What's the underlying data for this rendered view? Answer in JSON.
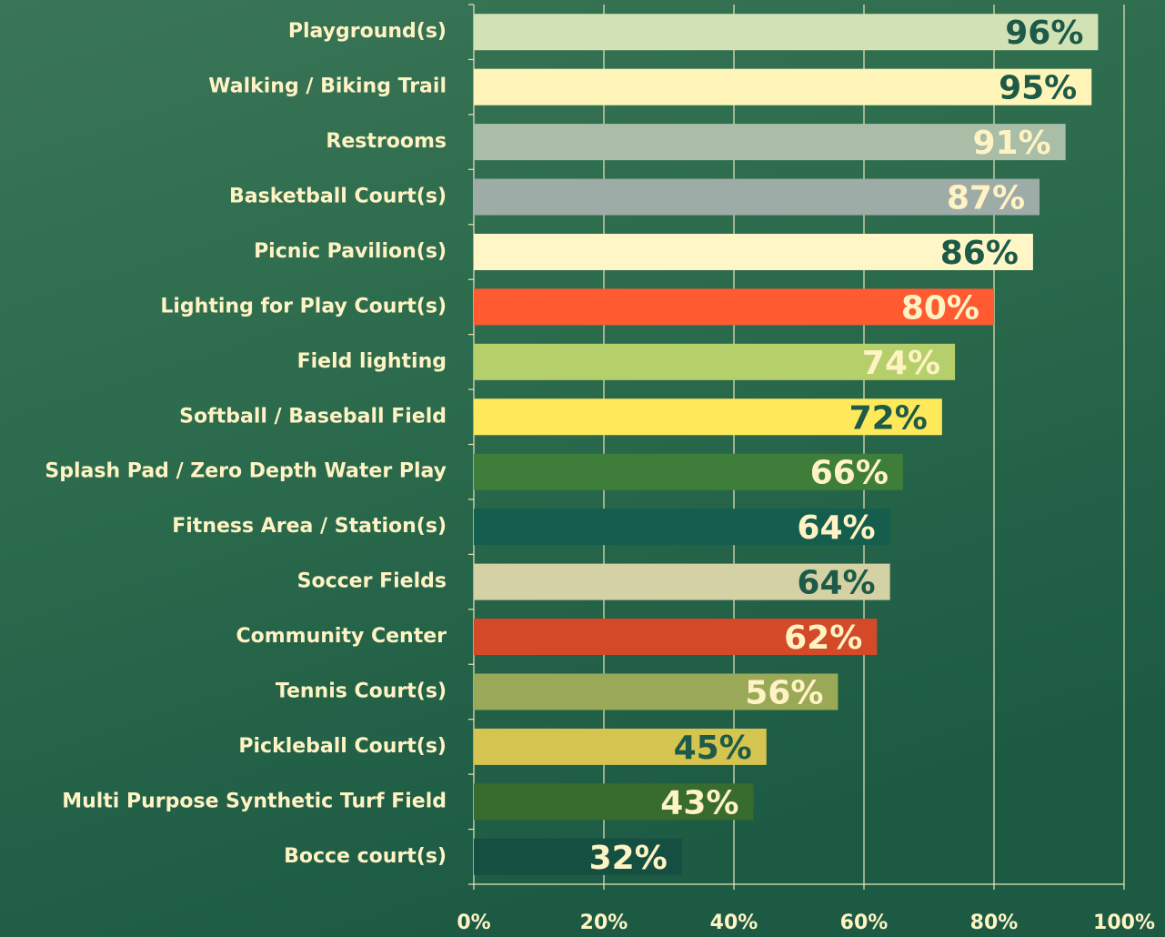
{
  "chart_data": {
    "type": "barh",
    "categories": [
      "Playground(s)",
      "Walking / Biking Trail",
      "Restrooms",
      "Basketball Court(s)",
      "Picnic Pavilion(s)",
      "Lighting for Play Court(s)",
      "Field lighting",
      "Softball / Baseball Field",
      "Splash Pad / Zero Depth Water Play",
      "Fitness Area / Station(s)",
      "Soccer Fields",
      "Community Center",
      "Tennis Court(s)",
      "Pickleball Court(s)",
      "Multi Purpose Synthetic Turf Field",
      "Bocce court(s)"
    ],
    "values": [
      96,
      95,
      91,
      87,
      86,
      80,
      74,
      72,
      66,
      64,
      64,
      62,
      56,
      45,
      43,
      32
    ],
    "value_labels": [
      "96%",
      "95%",
      "91%",
      "87%",
      "86%",
      "80%",
      "74%",
      "72%",
      "66%",
      "64%",
      "64%",
      "62%",
      "56%",
      "45%",
      "43%",
      "32%"
    ],
    "colors": [
      "#d2e2b4",
      "#fff5b8",
      "#a9bda7",
      "#9eaca7",
      "#fff6c8",
      "#ff5a30",
      "#b5cf6b",
      "#fde95a",
      "#3f7d3b",
      "#155d4c",
      "#d4d1a4",
      "#d44a28",
      "#99a957",
      "#d5c44f",
      "#386c2e",
      "#154f42"
    ],
    "label_colors": [
      "#1d5b48",
      "#1d5b48",
      "#fff3c4",
      "#fff3c4",
      "#1d5b48",
      "#fff3c4",
      "#fff3c4",
      "#1d5b48",
      "#fff3c4",
      "#fff3c4",
      "#1d5b48",
      "#fff3c4",
      "#fff3c4",
      "#1d5b48",
      "#fff3c4",
      "#fff3c4"
    ],
    "xlim": [
      0,
      100
    ],
    "xticks": [
      {
        "value": 0,
        "label": "0%"
      },
      {
        "value": 20,
        "label": "20%"
      },
      {
        "value": 40,
        "label": "40%"
      },
      {
        "value": 60,
        "label": "60%"
      },
      {
        "value": 80,
        "label": "80%"
      },
      {
        "value": 100,
        "label": "100%"
      }
    ],
    "grid": true
  }
}
